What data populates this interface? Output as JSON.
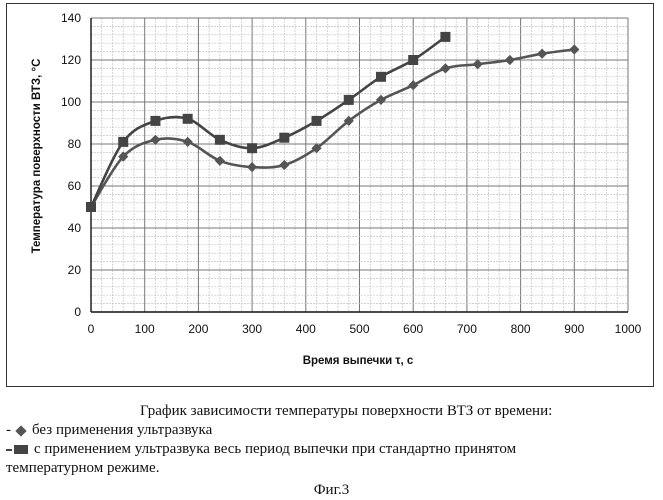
{
  "chart_data": {
    "type": "line",
    "xlabel": "Время выпечки τ, с",
    "ylabel": "Температура поверхности ВТЗ, °С",
    "xlim": [
      0,
      1000
    ],
    "ylim": [
      0,
      140
    ],
    "x_ticks": [
      "0",
      "100",
      "200",
      "300",
      "400",
      "500",
      "600",
      "700",
      "800",
      "900",
      "1000"
    ],
    "y_ticks": [
      "0",
      "20",
      "40",
      "60",
      "80",
      "100",
      "120",
      "140"
    ],
    "grid": true,
    "series": [
      {
        "name": "без применения ультразвука",
        "marker": "diamond",
        "color": "#555555",
        "x": [
          0,
          60,
          120,
          180,
          240,
          300,
          360,
          420,
          480,
          540,
          600,
          660,
          720,
          780,
          840,
          900
        ],
        "y": [
          50,
          74,
          82,
          81,
          72,
          69,
          70,
          78,
          91,
          101,
          108,
          116,
          118,
          120,
          123,
          125
        ]
      },
      {
        "name": "с применением ультразвука весь период выпечки при стандартно принятом температурном режиме.",
        "marker": "square",
        "color": "#444444",
        "x": [
          0,
          60,
          120,
          180,
          240,
          300,
          360,
          420,
          480,
          540,
          600,
          660
        ],
        "y": [
          50,
          81,
          91,
          92,
          82,
          78,
          83,
          91,
          101,
          112,
          120,
          131
        ]
      }
    ]
  },
  "caption": {
    "title": "График зависимости температуры поверхности ВТЗ от времени:",
    "legend_1_prefix": "-",
    "legend_1_text": "без применения ультразвука",
    "legend_2_text": "с применением ультразвука весь период выпечки при стандартно принятом",
    "legend_2_cont": "температурном режиме."
  },
  "figure_label": "Фиг.3"
}
